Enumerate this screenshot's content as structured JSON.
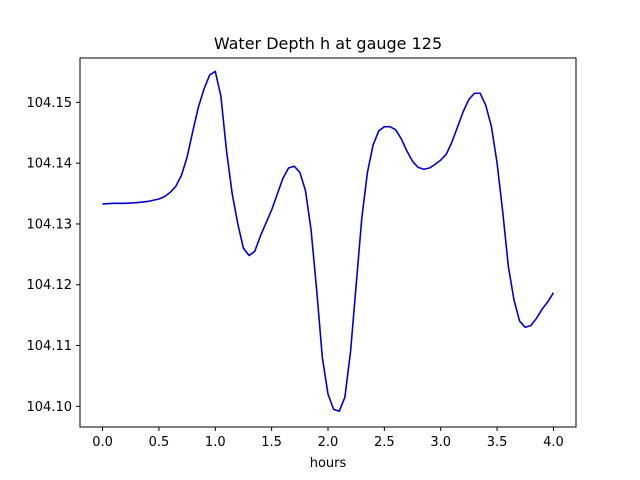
{
  "chart_data": {
    "type": "line",
    "title": "Water Depth h at gauge 125",
    "xlabel": "hours",
    "ylabel": "",
    "xlim": [
      -0.2,
      4.2
    ],
    "ylim": [
      104.0966,
      104.1573
    ],
    "xticks": [
      0.0,
      0.5,
      1.0,
      1.5,
      2.0,
      2.5,
      3.0,
      3.5,
      4.0
    ],
    "xtick_labels": [
      "0.0",
      "0.5",
      "1.0",
      "1.5",
      "2.0",
      "2.5",
      "3.0",
      "3.5",
      "4.0"
    ],
    "yticks": [
      104.1,
      104.11,
      104.12,
      104.13,
      104.14,
      104.15
    ],
    "ytick_labels": [
      "104.10",
      "104.11",
      "104.12",
      "104.13",
      "104.14",
      "104.15"
    ],
    "grid": false,
    "series": [
      {
        "color": "#0000cc",
        "x": [
          0.0,
          0.1,
          0.2,
          0.3,
          0.4,
          0.5,
          0.55,
          0.6,
          0.65,
          0.7,
          0.75,
          0.8,
          0.85,
          0.9,
          0.95,
          1.0,
          1.05,
          1.1,
          1.15,
          1.2,
          1.25,
          1.3,
          1.35,
          1.4,
          1.5,
          1.6,
          1.65,
          1.7,
          1.75,
          1.8,
          1.85,
          1.9,
          1.95,
          2.0,
          2.05,
          2.1,
          2.15,
          2.2,
          2.25,
          2.3,
          2.35,
          2.4,
          2.45,
          2.5,
          2.55,
          2.6,
          2.65,
          2.7,
          2.75,
          2.8,
          2.85,
          2.9,
          2.95,
          3.0,
          3.05,
          3.1,
          3.15,
          3.2,
          3.25,
          3.3,
          3.35,
          3.4,
          3.45,
          3.5,
          3.55,
          3.6,
          3.65,
          3.7,
          3.75,
          3.8,
          3.85,
          3.9,
          3.95,
          4.0
        ],
        "y": [
          104.1333,
          104.1334,
          104.1334,
          104.1335,
          104.1337,
          104.1341,
          104.1345,
          104.1352,
          104.1362,
          104.138,
          104.141,
          104.1452,
          104.1492,
          104.1522,
          104.1545,
          104.1551,
          104.151,
          104.142,
          104.135,
          104.13,
          104.126,
          104.1248,
          104.1255,
          104.128,
          104.1323,
          104.1375,
          104.1392,
          104.1395,
          104.1385,
          104.1355,
          104.129,
          104.119,
          104.108,
          104.102,
          104.0995,
          104.0992,
          104.1015,
          104.109,
          104.12,
          104.131,
          104.1385,
          104.143,
          104.1453,
          104.146,
          104.146,
          104.1455,
          104.144,
          104.142,
          104.1403,
          104.1393,
          104.139,
          104.1392,
          104.1398,
          104.1405,
          104.1415,
          104.1435,
          104.146,
          104.1485,
          104.1505,
          104.1515,
          104.1515,
          104.1495,
          104.146,
          104.14,
          104.132,
          104.123,
          104.1175,
          104.114,
          104.113,
          104.1133,
          104.1145,
          104.116,
          104.1172,
          104.1187
        ]
      }
    ]
  }
}
